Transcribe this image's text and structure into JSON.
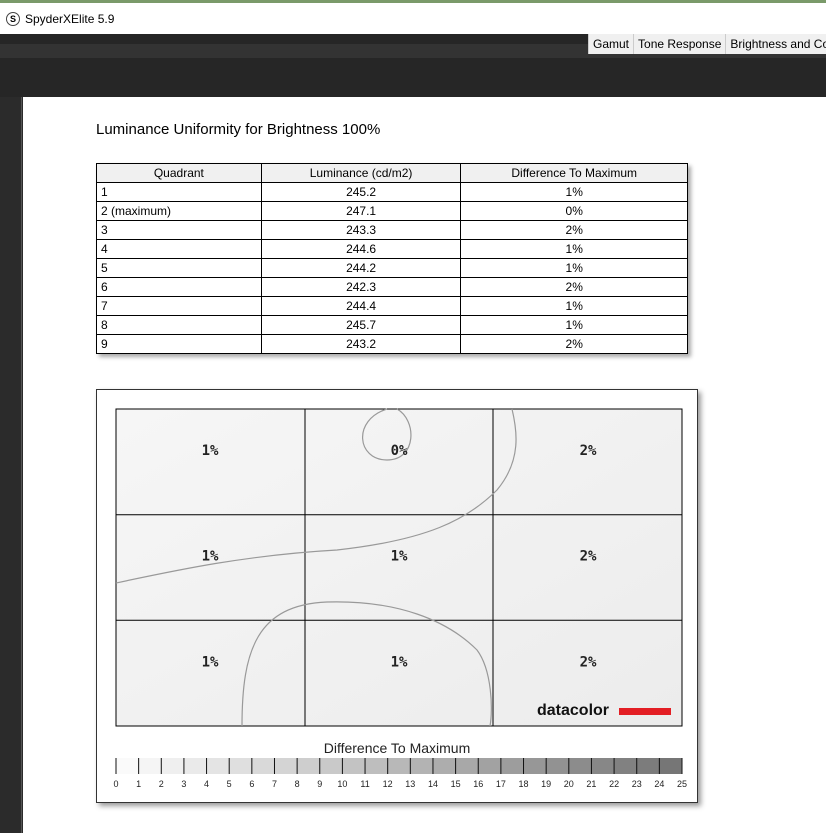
{
  "window": {
    "title": "SpyderXElite 5.9",
    "logo_letter": "S"
  },
  "tabs": [
    "Gamut",
    "Tone Response",
    "Brightness and Con"
  ],
  "heading": "Luminance Uniformity for Brightness 100%",
  "table": {
    "headers": [
      "Quadrant",
      "Luminance (cd/m2)",
      "Difference To Maximum"
    ],
    "rows": [
      [
        "1",
        "245.2",
        "1%"
      ],
      [
        "2 (maximum)",
        "247.1",
        "0%"
      ],
      [
        "3",
        "243.3",
        "2%"
      ],
      [
        "4",
        "244.6",
        "1%"
      ],
      [
        "5",
        "244.2",
        "1%"
      ],
      [
        "6",
        "242.3",
        "2%"
      ],
      [
        "7",
        "244.4",
        "1%"
      ],
      [
        "8",
        "245.7",
        "1%"
      ],
      [
        "9",
        "243.2",
        "2%"
      ]
    ]
  },
  "map": {
    "cells": [
      "1%",
      "0%",
      "2%",
      "1%",
      "1%",
      "2%",
      "1%",
      "1%",
      "2%"
    ],
    "brand": "datacolor",
    "brand_color": "#e31e24"
  },
  "legend": {
    "title": "Difference To Maximum",
    "ticks": [
      "0",
      "1",
      "2",
      "3",
      "4",
      "5",
      "6",
      "7",
      "8",
      "9",
      "10",
      "11",
      "12",
      "13",
      "14",
      "15",
      "16",
      "17",
      "18",
      "19",
      "20",
      "21",
      "22",
      "23",
      "24",
      "25"
    ]
  }
}
